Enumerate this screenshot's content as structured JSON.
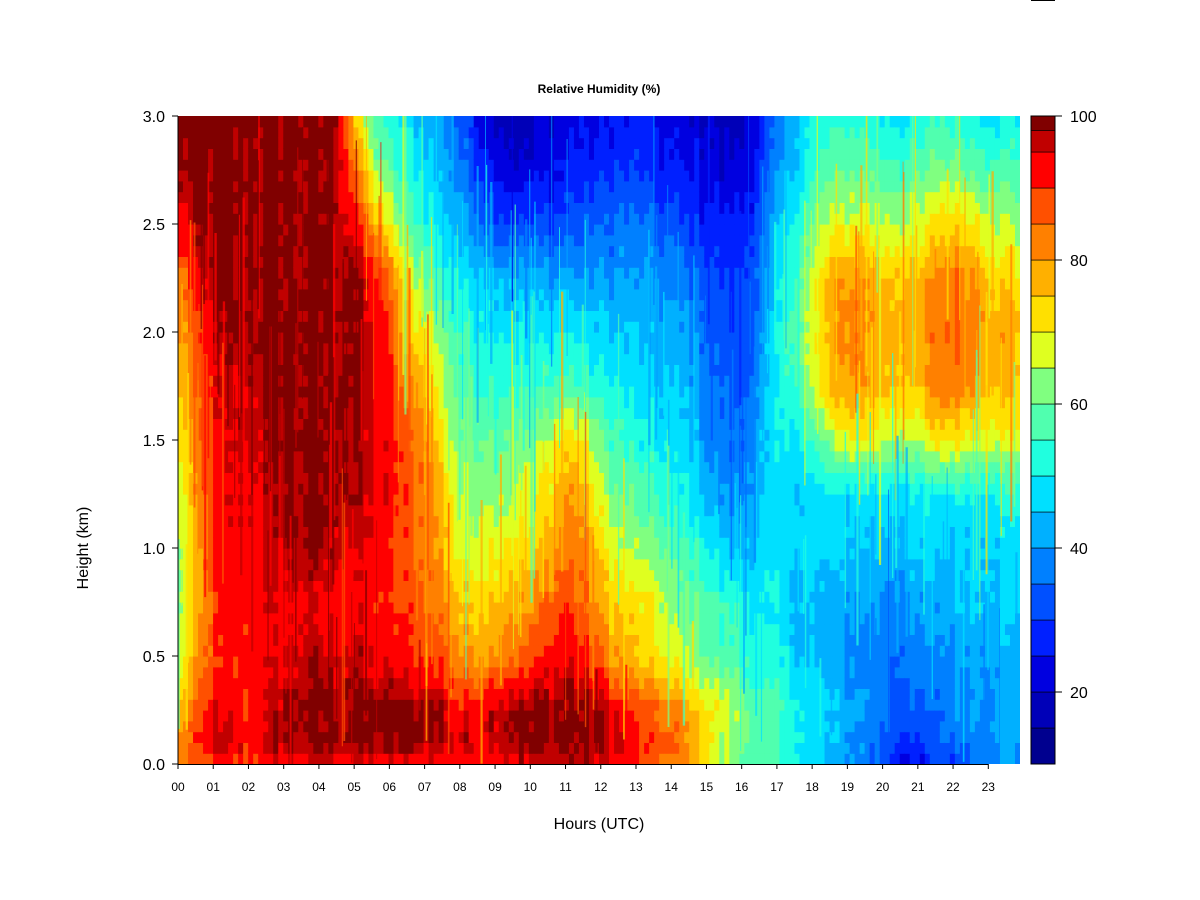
{
  "chart_data": {
    "type": "heatmap",
    "title": "Relative Humidity (%)",
    "xlabel": "Hours (UTC)",
    "ylabel": "Height (km)",
    "xlim": [
      0,
      23.9
    ],
    "ylim": [
      0,
      3.0
    ],
    "x_ticks": [
      "00",
      "01",
      "02",
      "03",
      "04",
      "05",
      "06",
      "07",
      "08",
      "09",
      "10",
      "11",
      "12",
      "13",
      "14",
      "15",
      "16",
      "17",
      "18",
      "19",
      "20",
      "21",
      "22",
      "23"
    ],
    "y_ticks": [
      "0.0",
      "0.5",
      "1.0",
      "1.5",
      "2.0",
      "2.5",
      "3.0"
    ],
    "y_tick_values": [
      0,
      0.5,
      1.0,
      1.5,
      2.0,
      2.5,
      3.0
    ],
    "colorbar": {
      "min": 10,
      "max": 100,
      "ticks": [
        20,
        40,
        60,
        80,
        100
      ],
      "tick_labels": [
        "20",
        "40",
        "60",
        "80",
        "100"
      ],
      "levels": [
        {
          "from": 10,
          "to": 15,
          "color": "#00008F"
        },
        {
          "from": 15,
          "to": 20,
          "color": "#0000B8"
        },
        {
          "from": 20,
          "to": 25,
          "color": "#0000E0"
        },
        {
          "from": 25,
          "to": 30,
          "color": "#0020FF"
        },
        {
          "from": 30,
          "to": 35,
          "color": "#0050FF"
        },
        {
          "from": 35,
          "to": 40,
          "color": "#0080FF"
        },
        {
          "from": 40,
          "to": 45,
          "color": "#00B0FF"
        },
        {
          "from": 45,
          "to": 50,
          "color": "#00E0FF"
        },
        {
          "from": 50,
          "to": 55,
          "color": "#20FFDF"
        },
        {
          "from": 55,
          "to": 60,
          "color": "#50FFAF"
        },
        {
          "from": 60,
          "to": 65,
          "color": "#80FF80"
        },
        {
          "from": 65,
          "to": 70,
          "color": "#DFFF20"
        },
        {
          "from": 70,
          "to": 75,
          "color": "#FFE000"
        },
        {
          "from": 75,
          "to": 80,
          "color": "#FFB000"
        },
        {
          "from": 80,
          "to": 85,
          "color": "#FF8000"
        },
        {
          "from": 85,
          "to": 90,
          "color": "#FF5000"
        },
        {
          "from": 90,
          "to": 95,
          "color": "#FF0000"
        },
        {
          "from": 95,
          "to": 98,
          "color": "#C00000"
        },
        {
          "from": 98,
          "to": 100,
          "color": "#800000"
        }
      ]
    },
    "x_hours": [
      0,
      0.5,
      1,
      1.5,
      2,
      2.5,
      3,
      3.5,
      4,
      4.5,
      5,
      5.5,
      6,
      6.5,
      7,
      7.5,
      8,
      8.5,
      9,
      9.5,
      10,
      10.5,
      11,
      11.5,
      12,
      12.5,
      13,
      13.5,
      14,
      14.5,
      15,
      15.5,
      16,
      16.5,
      17,
      17.5,
      18,
      18.5,
      19,
      19.5,
      20,
      20.5,
      21,
      21.5,
      22,
      22.5,
      23,
      23.9
    ],
    "y_heights_km": [
      0.0,
      0.1,
      0.25,
      0.5,
      0.75,
      1.0,
      1.25,
      1.5,
      1.75,
      2.0,
      2.25,
      2.5,
      2.75,
      3.0
    ],
    "values_by_height": [
      [
        80,
        85,
        88,
        88,
        90,
        90,
        93,
        93,
        93,
        93,
        93,
        93,
        93,
        93,
        93,
        93,
        92,
        92,
        93,
        95,
        95,
        97,
        97,
        96,
        95,
        93,
        90,
        88,
        85,
        80,
        72,
        65,
        60,
        58,
        55,
        52,
        48,
        45,
        40,
        38,
        32,
        25,
        22,
        28,
        32,
        35,
        38,
        40
      ],
      [
        78,
        88,
        96,
        95,
        93,
        96,
        99,
        99,
        99,
        99,
        99,
        99,
        99,
        99,
        99,
        98,
        95,
        96,
        98,
        99,
        99,
        99,
        99,
        99,
        98,
        96,
        92,
        88,
        85,
        80,
        72,
        65,
        62,
        58,
        55,
        52,
        48,
        45,
        42,
        38,
        35,
        30,
        28,
        33,
        36,
        38,
        40,
        42
      ],
      [
        76,
        85,
        93,
        93,
        90,
        94,
        98,
        99,
        99,
        99,
        99,
        99,
        99,
        99,
        99,
        97,
        92,
        94,
        97,
        99,
        99,
        99,
        99,
        99,
        97,
        93,
        88,
        86,
        83,
        78,
        72,
        67,
        62,
        58,
        55,
        52,
        48,
        45,
        42,
        40,
        38,
        34,
        33,
        35,
        38,
        40,
        42,
        42
      ],
      [
        65,
        78,
        88,
        91,
        92,
        93,
        95,
        96,
        96,
        96,
        96,
        93,
        92,
        92,
        90,
        88,
        80,
        80,
        82,
        85,
        88,
        92,
        95,
        92,
        85,
        78,
        75,
        72,
        68,
        65,
        60,
        58,
        55,
        52,
        50,
        46,
        44,
        42,
        40,
        38,
        37,
        36,
        37,
        38,
        40,
        42,
        42,
        43
      ],
      [
        62,
        75,
        88,
        91,
        92,
        93,
        94,
        94,
        93,
        93,
        93,
        92,
        90,
        88,
        86,
        82,
        74,
        74,
        76,
        78,
        80,
        84,
        90,
        85,
        78,
        74,
        72,
        68,
        64,
        61,
        57,
        54,
        52,
        50,
        48,
        45,
        44,
        42,
        41,
        40,
        40,
        39,
        40,
        42,
        44,
        46,
        46,
        47
      ],
      [
        62,
        75,
        90,
        93,
        93,
        95,
        97,
        98,
        98,
        97,
        95,
        93,
        90,
        87,
        84,
        78,
        68,
        68,
        70,
        72,
        72,
        78,
        84,
        82,
        72,
        66,
        64,
        61,
        58,
        55,
        52,
        45,
        44,
        46,
        48,
        47,
        46,
        45,
        45,
        45,
        45,
        44,
        45,
        46,
        46,
        47,
        47,
        48
      ],
      [
        65,
        78,
        90,
        94,
        94,
        96,
        98,
        99,
        99,
        99,
        98,
        95,
        93,
        88,
        84,
        76,
        65,
        64,
        64,
        66,
        68,
        72,
        80,
        78,
        66,
        60,
        58,
        55,
        52,
        50,
        44,
        40,
        40,
        44,
        46,
        47,
        48,
        48,
        48,
        48,
        48,
        48,
        49,
        50,
        50,
        51,
        51,
        52
      ],
      [
        70,
        80,
        92,
        95,
        96,
        97,
        99,
        99,
        99,
        99,
        98,
        95,
        92,
        86,
        82,
        72,
        62,
        60,
        60,
        62,
        62,
        66,
        72,
        70,
        60,
        56,
        52,
        50,
        48,
        46,
        40,
        36,
        36,
        42,
        48,
        50,
        55,
        62,
        70,
        70,
        66,
        66,
        64,
        72,
        72,
        70,
        68,
        68
      ],
      [
        74,
        83,
        93,
        96,
        97,
        98,
        99,
        99,
        99,
        99,
        99,
        95,
        90,
        82,
        76,
        66,
        58,
        56,
        54,
        54,
        54,
        56,
        58,
        56,
        52,
        50,
        48,
        46,
        45,
        43,
        38,
        34,
        34,
        40,
        48,
        56,
        65,
        75,
        80,
        80,
        76,
        76,
        74,
        82,
        84,
        82,
        78,
        75
      ],
      [
        78,
        86,
        95,
        98,
        99,
        99,
        99,
        99,
        99,
        99,
        99,
        95,
        88,
        76,
        70,
        62,
        54,
        52,
        50,
        48,
        48,
        48,
        50,
        48,
        46,
        45,
        44,
        42,
        42,
        40,
        36,
        32,
        32,
        38,
        48,
        58,
        68,
        78,
        82,
        82,
        78,
        78,
        76,
        84,
        86,
        84,
        80,
        76
      ],
      [
        82,
        92,
        99,
        99,
        99,
        99,
        99,
        99,
        99,
        99,
        99,
        93,
        84,
        70,
        62,
        55,
        50,
        48,
        46,
        44,
        42,
        42,
        42,
        40,
        40,
        40,
        40,
        40,
        38,
        36,
        33,
        30,
        30,
        36,
        46,
        56,
        66,
        76,
        80,
        80,
        76,
        76,
        74,
        82,
        84,
        82,
        76,
        72
      ],
      [
        92,
        97,
        99,
        99,
        99,
        99,
        99,
        99,
        99,
        99,
        95,
        80,
        68,
        58,
        52,
        48,
        42,
        38,
        32,
        30,
        30,
        30,
        32,
        34,
        34,
        36,
        36,
        34,
        32,
        30,
        28,
        26,
        26,
        32,
        42,
        52,
        60,
        66,
        68,
        68,
        66,
        66,
        66,
        72,
        74,
        72,
        68,
        64
      ],
      [
        98,
        99,
        99,
        99,
        99,
        99,
        99,
        99,
        99,
        99,
        86,
        66,
        58,
        52,
        48,
        44,
        38,
        30,
        25,
        22,
        22,
        24,
        26,
        28,
        28,
        30,
        30,
        28,
        26,
        25,
        23,
        21,
        21,
        28,
        38,
        46,
        54,
        58,
        60,
        60,
        58,
        56,
        58,
        62,
        62,
        60,
        58,
        56
      ],
      [
        99,
        99,
        99,
        99,
        99,
        99,
        99,
        99,
        99,
        99,
        76,
        58,
        52,
        48,
        44,
        40,
        34,
        26,
        20,
        18,
        18,
        20,
        22,
        24,
        24,
        26,
        26,
        24,
        22,
        22,
        20,
        18,
        18,
        26,
        36,
        44,
        50,
        52,
        54,
        52,
        50,
        48,
        50,
        54,
        54,
        52,
        50,
        50
      ]
    ]
  }
}
